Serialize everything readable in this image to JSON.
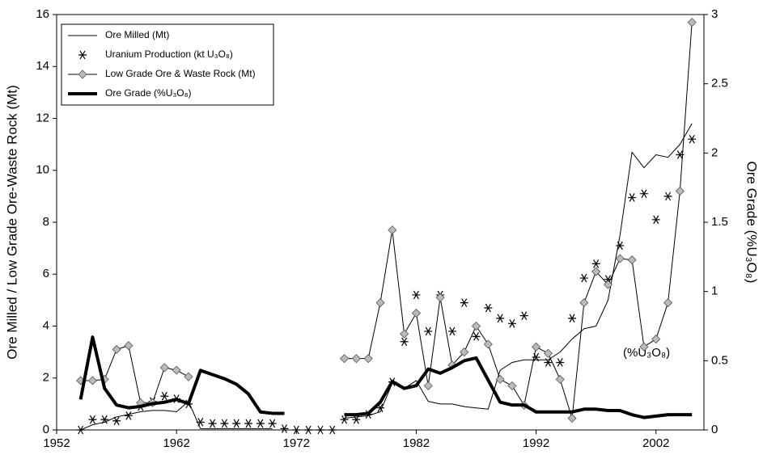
{
  "chart_data": {
    "type": "line",
    "y_label": "Ore Milled / Low Grade Ore-Waste Rock (Mt)",
    "y2_label": "Ore Grade (%U₃O₈)",
    "annotation": "(%U₃O₈)",
    "x": [
      1954,
      1955,
      1956,
      1957,
      1958,
      1959,
      1960,
      1961,
      1962,
      1963,
      1964,
      1965,
      1966,
      1967,
      1968,
      1969,
      1970,
      1971,
      1972,
      1973,
      1974,
      1975,
      1976,
      1977,
      1978,
      1979,
      1980,
      1981,
      1982,
      1983,
      1984,
      1985,
      1986,
      1987,
      1988,
      1989,
      1990,
      1991,
      1992,
      1993,
      1994,
      1995,
      1996,
      1997,
      1998,
      1999,
      2000,
      2001,
      2002,
      2003,
      2004,
      2005
    ],
    "xlim": [
      1952,
      2006
    ],
    "xticks": [
      1952,
      1962,
      1972,
      1982,
      1992,
      2002
    ],
    "ylim": [
      0,
      16
    ],
    "yticks": [
      0,
      2,
      4,
      6,
      8,
      10,
      12,
      14,
      16
    ],
    "y2lim": [
      0,
      3
    ],
    "y2ticks": [
      0,
      0.5,
      1,
      1.5,
      2,
      2.5,
      3
    ],
    "legend": "upper-left",
    "series": [
      {
        "name": "Ore Milled (Mt)",
        "color": "#000000",
        "line_width": 1,
        "marker": "none",
        "values": [
          0,
          0.2,
          0.3,
          0.5,
          0.6,
          0.7,
          0.75,
          0.75,
          0.7,
          1.1,
          0.05,
          0.05,
          0.05,
          0.05,
          0.05,
          0.05,
          0.05,
          null,
          null,
          null,
          null,
          null,
          0.45,
          0.5,
          0.55,
          0.7,
          1.8,
          1.6,
          1.9,
          1.1,
          1.0,
          1.0,
          0.9,
          0.85,
          0.8,
          2.3,
          2.6,
          2.7,
          2.7,
          2.7,
          3.0,
          3.5,
          3.9,
          4.0,
          5.0,
          7.5,
          10.7,
          10.1,
          10.6,
          10.5,
          11.0,
          11.8
        ]
      },
      {
        "name": "Uranium Production (kt U₃O₈)",
        "color": "#000000",
        "line_width": 0,
        "marker": "asterisk",
        "values": [
          0,
          0.4,
          0.4,
          0.35,
          0.55,
          0.9,
          1.1,
          1.3,
          1.2,
          1.0,
          0.3,
          0.25,
          0.25,
          0.25,
          0.25,
          0.25,
          0.25,
          0.05,
          0,
          0,
          0,
          0,
          0.4,
          0.4,
          0.6,
          0.85,
          1.85,
          3.4,
          5.2,
          3.8,
          5.2,
          3.8,
          4.9,
          3.6,
          4.7,
          4.3,
          4.1,
          4.4,
          2.8,
          2.6,
          2.6,
          4.3,
          5.85,
          6.4,
          5.8,
          7.1,
          8.95,
          9.1,
          8.1,
          9.0,
          10.6,
          11.2
        ]
      },
      {
        "name": "Low Grade Ore & Waste Rock (Mt)",
        "color": "#000000",
        "marker_color": "#bbbbbb",
        "line_width": 1,
        "marker": "diamond",
        "values": [
          1.9,
          1.9,
          1.95,
          3.1,
          3.25,
          1.05,
          1.05,
          2.4,
          2.3,
          2.05,
          null,
          null,
          null,
          null,
          null,
          null,
          null,
          null,
          null,
          null,
          null,
          null,
          2.75,
          2.75,
          2.75,
          4.9,
          7.7,
          3.7,
          4.5,
          1.7,
          5.1,
          2.5,
          3.0,
          4.0,
          3.3,
          1.95,
          1.7,
          0.95,
          3.2,
          2.95,
          1.95,
          0.45,
          4.9,
          6.1,
          5.6,
          6.6,
          6.55,
          3.2,
          3.5,
          4.9,
          9.2,
          15.7
        ]
      },
      {
        "name": "Ore Grade (%U₃O₈)",
        "color": "#000000",
        "line_width": 4,
        "marker": "none",
        "axis": "y2",
        "values": [
          0.22,
          0.67,
          0.3,
          0.18,
          0.16,
          0.17,
          0.19,
          0.2,
          0.22,
          0.19,
          0.43,
          0.4,
          0.37,
          0.33,
          0.26,
          0.13,
          0.12,
          0.12,
          null,
          null,
          null,
          null,
          0.11,
          0.11,
          0.12,
          0.2,
          0.35,
          0.3,
          0.32,
          0.44,
          0.41,
          0.45,
          0.5,
          0.52,
          0.36,
          0.2,
          0.18,
          0.18,
          0.13,
          0.13,
          0.13,
          0.13,
          0.15,
          0.15,
          0.14,
          0.14,
          0.11,
          0.09,
          0.1,
          0.11,
          0.11,
          0.11
        ]
      }
    ]
  }
}
